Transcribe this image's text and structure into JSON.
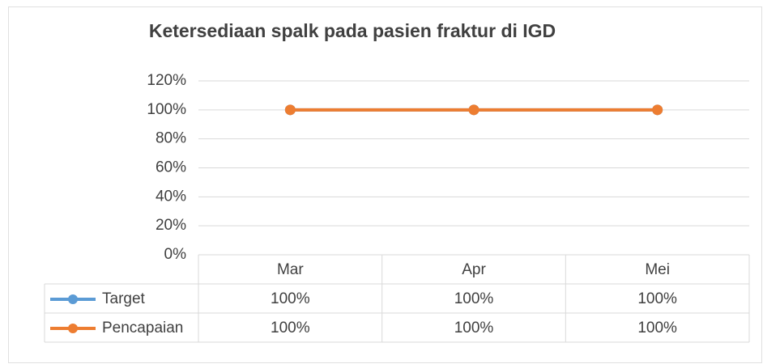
{
  "chart_data": {
    "type": "line",
    "title": "Ketersediaan spalk pada pasien fraktur di IGD",
    "categories": [
      "Mar",
      "Apr",
      "Mei"
    ],
    "series": [
      {
        "name": "Target",
        "color": "#5b9bd5",
        "values": [
          100,
          100,
          100
        ],
        "value_labels": [
          "100%",
          "100%",
          "100%"
        ]
      },
      {
        "name": "Pencapaian",
        "color": "#ed7d31",
        "values": [
          100,
          100,
          100
        ],
        "value_labels": [
          "100%",
          "100%",
          "100%"
        ]
      }
    ],
    "ylim": [
      0,
      120
    ],
    "yticks": [
      {
        "value": 0,
        "label": "0%"
      },
      {
        "value": 20,
        "label": "20%"
      },
      {
        "value": 40,
        "label": "40%"
      },
      {
        "value": 60,
        "label": "60%"
      },
      {
        "value": 80,
        "label": "80%"
      },
      {
        "value": 100,
        "label": "100%"
      },
      {
        "value": 120,
        "label": "120%"
      }
    ],
    "grid": true
  }
}
